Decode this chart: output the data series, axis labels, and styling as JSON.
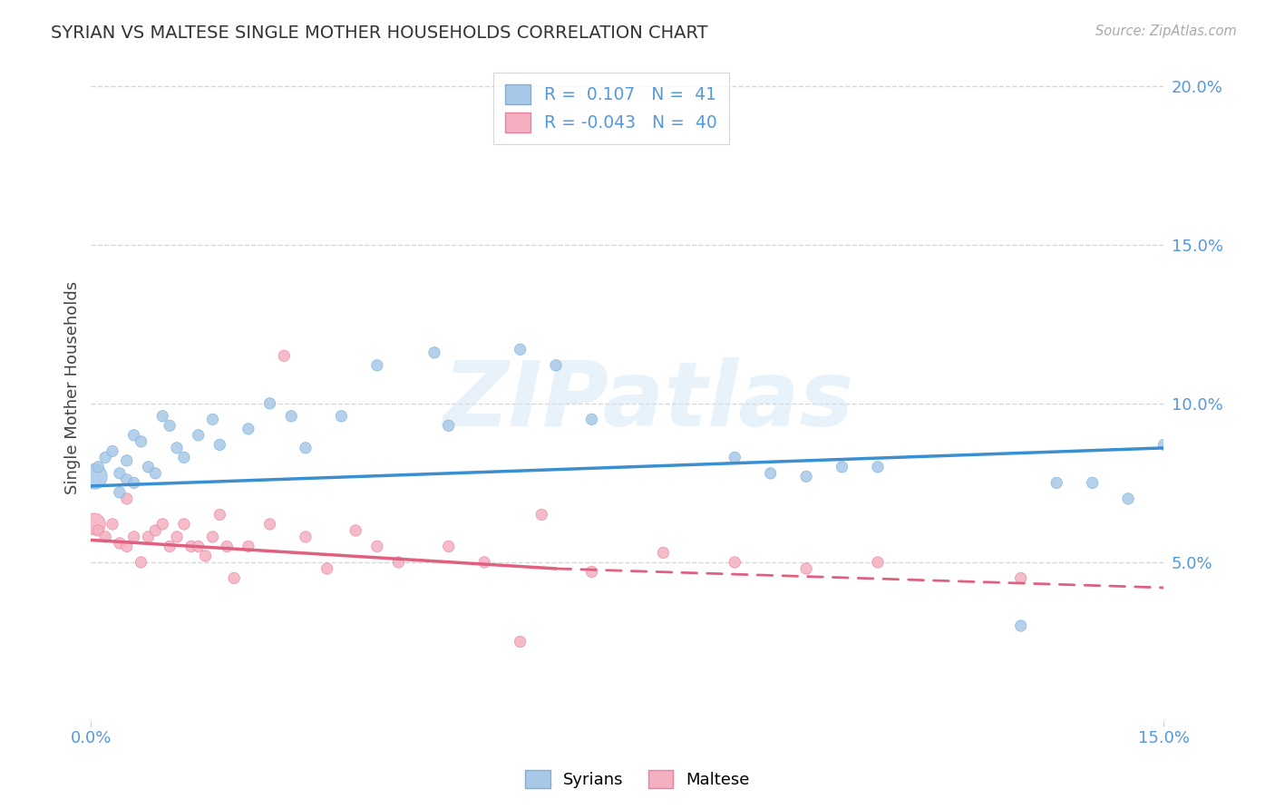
{
  "title": "SYRIAN VS MALTESE SINGLE MOTHER HOUSEHOLDS CORRELATION CHART",
  "source": "Source: ZipAtlas.com",
  "ylabel": "Single Mother Households",
  "xlim": [
    0.0,
    0.15
  ],
  "ylim": [
    0.0,
    0.21
  ],
  "ytick_vals": [
    0.05,
    0.1,
    0.15,
    0.2
  ],
  "ytick_labels": [
    "5.0%",
    "10.0%",
    "15.0%",
    "20.0%"
  ],
  "xtick_vals": [
    0.0,
    0.15
  ],
  "xtick_labels": [
    "0.0%",
    "15.0%"
  ],
  "syrian_color": "#a8c8e8",
  "syrian_edge_color": "#7ab0d8",
  "maltese_color": "#f4b0c0",
  "maltese_edge_color": "#e880a0",
  "syrian_line_color": "#3a8fd0",
  "maltese_line_color": "#e06080",
  "watermark": "ZIPatlas",
  "title_color": "#333333",
  "axis_label_color": "#444444",
  "tick_label_color": "#5599dd",
  "grid_color": "#cccccc",
  "background_color": "#ffffff",
  "source_color": "#aaaaaa",
  "syrian_x": [
    0.0005,
    0.001,
    0.002,
    0.003,
    0.004,
    0.004,
    0.005,
    0.005,
    0.006,
    0.006,
    0.007,
    0.008,
    0.009,
    0.01,
    0.011,
    0.012,
    0.013,
    0.015,
    0.017,
    0.018,
    0.022,
    0.025,
    0.028,
    0.03,
    0.035,
    0.04,
    0.048,
    0.05,
    0.06,
    0.065,
    0.07,
    0.09,
    0.095,
    0.1,
    0.105,
    0.11,
    0.13,
    0.135,
    0.14,
    0.145,
    0.15
  ],
  "syrian_y": [
    0.077,
    0.08,
    0.083,
    0.085,
    0.078,
    0.072,
    0.082,
    0.076,
    0.075,
    0.09,
    0.088,
    0.08,
    0.078,
    0.096,
    0.093,
    0.086,
    0.083,
    0.09,
    0.095,
    0.087,
    0.092,
    0.1,
    0.096,
    0.086,
    0.096,
    0.112,
    0.116,
    0.093,
    0.117,
    0.112,
    0.095,
    0.083,
    0.078,
    0.077,
    0.08,
    0.08,
    0.03,
    0.075,
    0.075,
    0.07,
    0.087
  ],
  "syrian_sizes": [
    400,
    80,
    80,
    80,
    80,
    80,
    80,
    80,
    80,
    80,
    80,
    80,
    80,
    80,
    80,
    80,
    80,
    80,
    80,
    80,
    80,
    80,
    80,
    80,
    80,
    80,
    80,
    80,
    80,
    80,
    80,
    80,
    80,
    80,
    80,
    80,
    80,
    80,
    80,
    80,
    80
  ],
  "maltese_x": [
    0.0005,
    0.001,
    0.002,
    0.003,
    0.004,
    0.005,
    0.005,
    0.006,
    0.007,
    0.008,
    0.009,
    0.01,
    0.011,
    0.012,
    0.013,
    0.014,
    0.015,
    0.016,
    0.017,
    0.018,
    0.019,
    0.02,
    0.022,
    0.025,
    0.027,
    0.03,
    0.033,
    0.037,
    0.04,
    0.043,
    0.05,
    0.055,
    0.06,
    0.063,
    0.07,
    0.08,
    0.09,
    0.1,
    0.11,
    0.13
  ],
  "maltese_y": [
    0.062,
    0.06,
    0.058,
    0.062,
    0.056,
    0.07,
    0.055,
    0.058,
    0.05,
    0.058,
    0.06,
    0.062,
    0.055,
    0.058,
    0.062,
    0.055,
    0.055,
    0.052,
    0.058,
    0.065,
    0.055,
    0.045,
    0.055,
    0.062,
    0.115,
    0.058,
    0.048,
    0.06,
    0.055,
    0.05,
    0.055,
    0.05,
    0.025,
    0.065,
    0.047,
    0.053,
    0.05,
    0.048,
    0.05,
    0.045
  ],
  "maltese_sizes": [
    300,
    80,
    80,
    80,
    80,
    80,
    80,
    80,
    80,
    80,
    80,
    80,
    80,
    80,
    80,
    80,
    80,
    80,
    80,
    80,
    80,
    80,
    80,
    80,
    80,
    80,
    80,
    80,
    80,
    80,
    80,
    80,
    80,
    80,
    80,
    80,
    80,
    80,
    80,
    80
  ],
  "syrian_line": [
    [
      0.0,
      0.15
    ],
    [
      0.074,
      0.086
    ]
  ],
  "maltese_line_solid": [
    [
      0.0,
      0.065
    ],
    [
      0.057,
      0.048
    ]
  ],
  "maltese_line_dashed": [
    [
      0.065,
      0.15
    ],
    [
      0.048,
      0.042
    ]
  ]
}
